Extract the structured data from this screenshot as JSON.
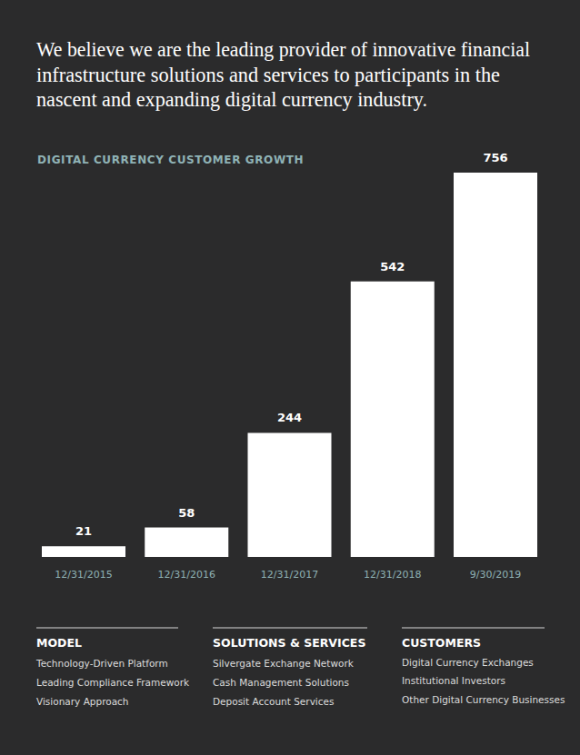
{
  "header": {
    "lines": [
      "We believe we are the leading provider of innovative financial",
      "infrastructure solutions and services to participants in the",
      "nascent and expanding digital currency industry."
    ]
  },
  "chart_data": {
    "type": "bar",
    "title": "DIGITAL CURRENCY CUSTOMER GROWTH",
    "categories": [
      "12/31/2015",
      "12/31/2016",
      "12/31/2017",
      "12/31/2018",
      "9/30/2019"
    ],
    "values": [
      21,
      58,
      244,
      542,
      756
    ],
    "color": "#ffffff",
    "ylim": [
      0,
      756
    ],
    "data_labels": true,
    "tick_labels": "x"
  },
  "columns": [
    {
      "heading": "MODEL",
      "items": [
        "Technology-Driven Platform",
        "Leading Compliance Framework",
        "Visionary Approach"
      ]
    },
    {
      "heading": "SOLUTIONS & SERVICES",
      "items": [
        "Silvergate Exchange Network",
        "Cash Management Solutions",
        "Deposit Account Services"
      ]
    },
    {
      "heading": "CUSTOMERS",
      "items": [
        "Digital Currency Exchanges",
        "Institutional Investors",
        "Other Digital Currency Businesses"
      ]
    }
  ]
}
